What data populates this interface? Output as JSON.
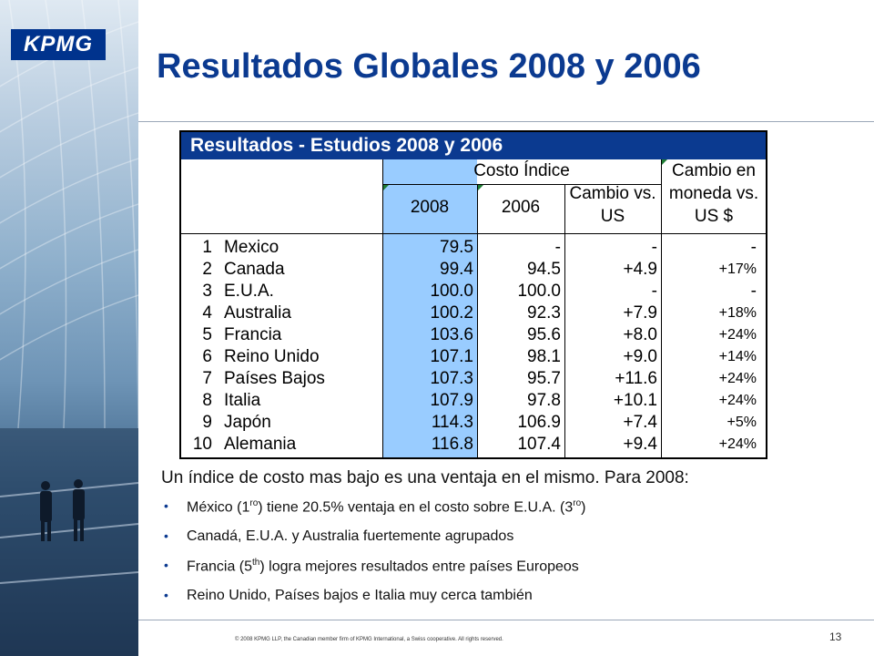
{
  "logo": {
    "text": "KPMG"
  },
  "slide_title": "Resultados Globales 2008 y 2006",
  "table": {
    "title": "Resultados - Estudios 2008 y 2006",
    "headers": {
      "costo_indice": "Costo Índice",
      "cambio_moneda_line1": "Cambio en",
      "cambio_moneda_line2": "moneda vs.",
      "cambio_moneda_line3": "US $",
      "year_2008": "2008",
      "year_2006": "2006",
      "cambio_vs_line1": "Cambio vs.",
      "cambio_vs_line2": "US"
    },
    "rows": [
      {
        "rank": "1",
        "country": "Mexico",
        "v2008": "79.5",
        "v2006": "-",
        "cambio": "-",
        "moneda": "-"
      },
      {
        "rank": "2",
        "country": "Canada",
        "v2008": "99.4",
        "v2006": "94.5",
        "cambio": "+4.9",
        "moneda": "+17%"
      },
      {
        "rank": "3",
        "country": "E.U.A.",
        "v2008": "100.0",
        "v2006": "100.0",
        "cambio": "-",
        "moneda": "-"
      },
      {
        "rank": "4",
        "country": "Australia",
        "v2008": "100.2",
        "v2006": "92.3",
        "cambio": "+7.9",
        "moneda": "+18%"
      },
      {
        "rank": "5",
        "country": "Francia",
        "v2008": "103.6",
        "v2006": "95.6",
        "cambio": "+8.0",
        "moneda": "+24%"
      },
      {
        "rank": "6",
        "country": "Reino Unido",
        "v2008": "107.1",
        "v2006": "98.1",
        "cambio": "+9.0",
        "moneda": "+14%"
      },
      {
        "rank": "7",
        "country": "Países Bajos",
        "v2008": "107.3",
        "v2006": "95.7",
        "cambio": "+11.6",
        "moneda": "+24%"
      },
      {
        "rank": "8",
        "country": "Italia",
        "v2008": "107.9",
        "v2006": "97.8",
        "cambio": "+10.1",
        "moneda": "+24%"
      },
      {
        "rank": "9",
        "country": "Japón",
        "v2008": "114.3",
        "v2006": "106.9",
        "cambio": "+7.4",
        "moneda": "+5%"
      },
      {
        "rank": "10",
        "country": "Alemania",
        "v2008": "116.8",
        "v2006": "107.4",
        "cambio": "+9.4",
        "moneda": "+24%"
      }
    ]
  },
  "notes": {
    "intro": "Un índice de costo mas bajo es una ventaja en el mismo. Para 2008:",
    "bullets": [
      {
        "pre": "México (1",
        "sup1": "ro",
        "mid": ") tiene 20.5% ventaja en el costo sobre E.U.A. (3",
        "sup2": "ro",
        "post": ")"
      },
      {
        "pre": "Canadá, E.U.A. y Australia fuertemente agrupados"
      },
      {
        "pre": "Francia (5",
        "sup1": "th",
        "mid": ") logra mejores resultados entre países Europeos"
      },
      {
        "pre": "Reino Unido, Países bajos e Italia muy cerca también"
      }
    ],
    "bullet_glyph": "•"
  },
  "footer": {
    "copyright": "© 2008 KPMG LLP, the Canadian  member firm of KPMG International,  a Swiss cooperative.  All rights reserved.",
    "page_number": "13"
  },
  "colors": {
    "brand_blue": "#0b3a90",
    "highlight_column": "#99ccff",
    "marker_green": "#1e7b34"
  }
}
